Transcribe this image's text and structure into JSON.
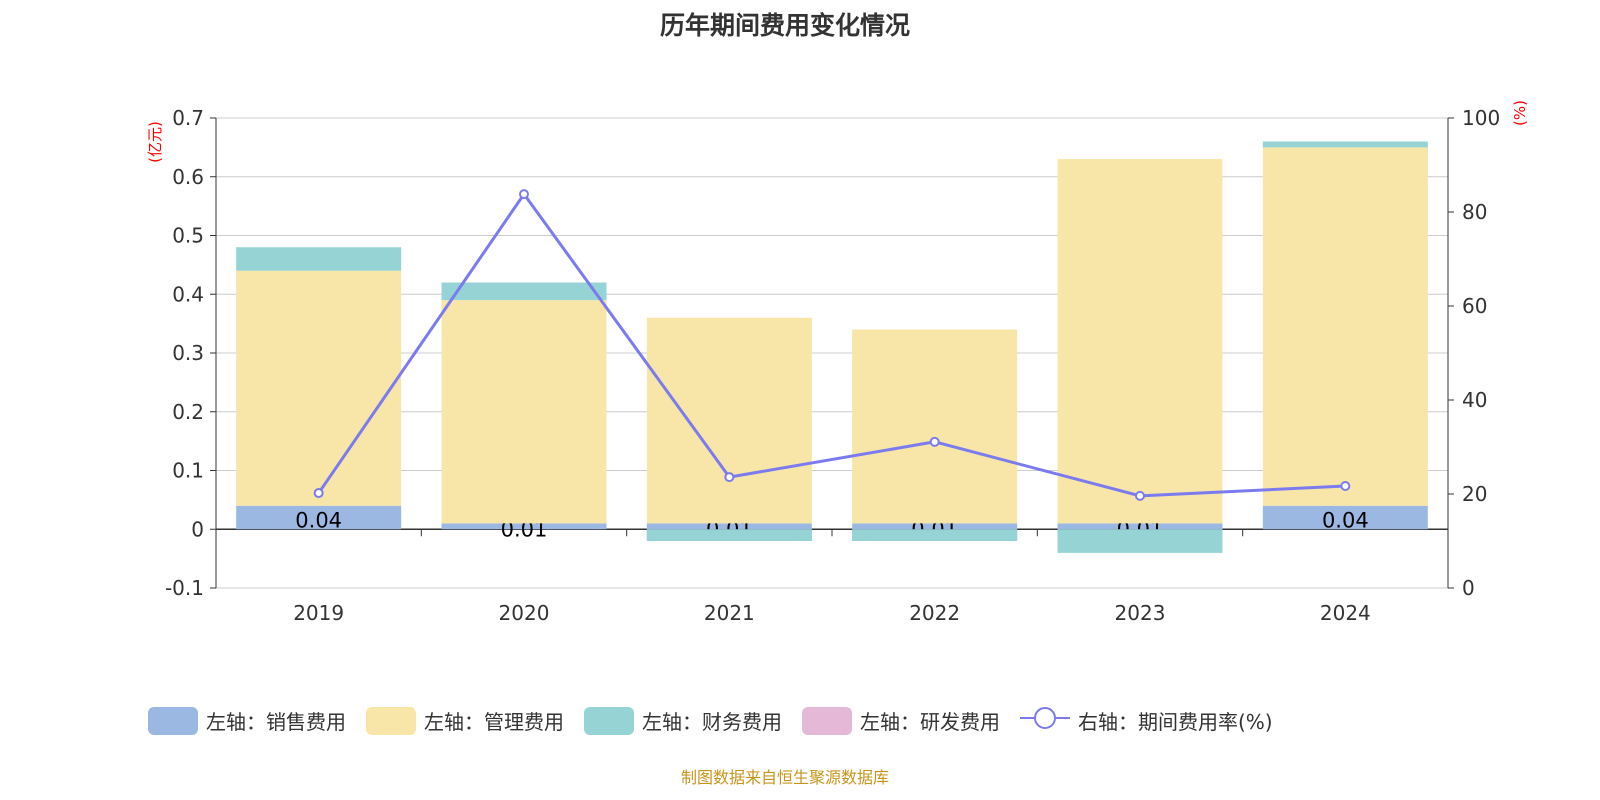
{
  "chart_data": {
    "type": "bar",
    "title": "历年期间费用变化情况",
    "categories": [
      "2019",
      "2020",
      "2021",
      "2022",
      "2023",
      "2024"
    ],
    "left_unit": "(亿元)",
    "right_unit": "(%)",
    "ylim_left": [
      -0.1,
      0.7
    ],
    "yticks_left": [
      "-0.1",
      "0",
      "0.1",
      "0.2",
      "0.3",
      "0.4",
      "0.5",
      "0.6",
      "0.7"
    ],
    "ylim_right": [
      0,
      100
    ],
    "yticks_right": [
      "0",
      "20",
      "40",
      "60",
      "80",
      "100"
    ],
    "series": [
      {
        "name": "左轴：销售费用",
        "type": "bar",
        "color": "#9bb8e3",
        "values": [
          0.04,
          0.01,
          0.01,
          0.01,
          0.01,
          0.04
        ],
        "labels": [
          "0.04",
          "0.01",
          "0.01",
          "0.01",
          "0.01",
          "0.04"
        ]
      },
      {
        "name": "左轴：管理费用",
        "type": "bar",
        "color": "#f7e6a8",
        "values": [
          0.4,
          0.38,
          0.35,
          0.33,
          0.62,
          0.61
        ]
      },
      {
        "name": "左轴：财务费用",
        "type": "bar",
        "color": "#96d3d4",
        "values": [
          0.04,
          0.03,
          -0.02,
          -0.02,
          -0.04,
          0.01
        ]
      },
      {
        "name": "左轴：研发费用",
        "type": "bar",
        "color": "#e5b8d8",
        "values": [
          0,
          0,
          0,
          0,
          0,
          0
        ]
      },
      {
        "name": "右轴：期间费用率(%)",
        "type": "line",
        "color": "#7b7bef",
        "values": [
          20.2,
          83.8,
          23.6,
          31.1,
          19.6,
          21.7
        ]
      }
    ]
  },
  "source": "制图数据来自恒生聚源数据库"
}
